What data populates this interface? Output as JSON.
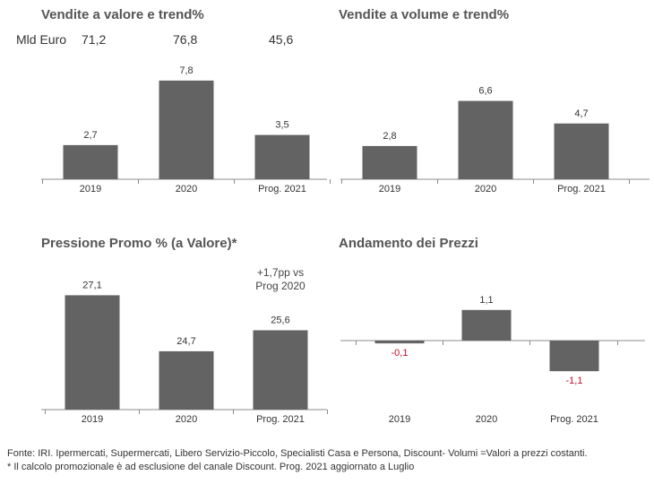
{
  "charts": {
    "valore": {
      "title": "Vendite a valore e trend%",
      "totals_label": "Mld Euro",
      "totals": [
        "71,2",
        "76,8",
        "45,6"
      ]
    },
    "volume": {
      "title": "Vendite a volume e trend%"
    },
    "promo": {
      "title": "Pressione Promo % (a Valore)*",
      "note_line1": "+1,7pp vs",
      "note_line2": "Prog 2020"
    },
    "prezzi": {
      "title": "Andamento dei Prezzi"
    }
  },
  "footer": {
    "line1": "Fonte: IRI. Ipermercati, Supermercati, Libero Servizio-Piccolo, Specialisti Casa e Persona, Discount-  Volumi =Valori a prezzi costanti.",
    "line2": "* Il calcolo promozionale è ad esclusione del canale Discount. Prog. 2021 aggiornato a Luglio"
  },
  "colors": {
    "bar": "#636363",
    "axis": "#8c8c8c",
    "negative_label": "#c0102a",
    "label": "#333333"
  },
  "chart_data": [
    {
      "id": "valore",
      "type": "bar",
      "title": "Vendite a valore e trend%",
      "categories": [
        "2019",
        "2020",
        "Prog. 2021"
      ],
      "values": [
        2.7,
        7.8,
        3.5
      ],
      "value_labels": [
        "2,7",
        "7,8",
        "3,5"
      ],
      "ylim": [
        0,
        8.5
      ]
    },
    {
      "id": "volume",
      "type": "bar",
      "title": "Vendite a volume e trend%",
      "categories": [
        "2019",
        "2020",
        "Prog. 2021"
      ],
      "values": [
        2.8,
        6.6,
        4.7
      ],
      "value_labels": [
        "2,8",
        "6,6",
        "4,7"
      ],
      "ylim": [
        0,
        7.4
      ]
    },
    {
      "id": "promo",
      "type": "bar",
      "title": "Pressione Promo % (a Valore)*",
      "categories": [
        "2019",
        "2020",
        "Prog. 2021"
      ],
      "values": [
        27.1,
        24.7,
        25.6
      ],
      "value_labels": [
        "27,1",
        "24,7",
        "25,6"
      ],
      "ylim": [
        22.2,
        27.5
      ]
    },
    {
      "id": "prezzi",
      "type": "bar",
      "title": "Andamento dei Prezzi",
      "categories": [
        "2019",
        "2020",
        "Prog. 2021"
      ],
      "values": [
        -0.1,
        1.1,
        -1.1
      ],
      "value_labels": [
        "-0,1",
        "1,1",
        "-1,1"
      ],
      "ylim": [
        -1.4,
        1.45
      ]
    }
  ]
}
